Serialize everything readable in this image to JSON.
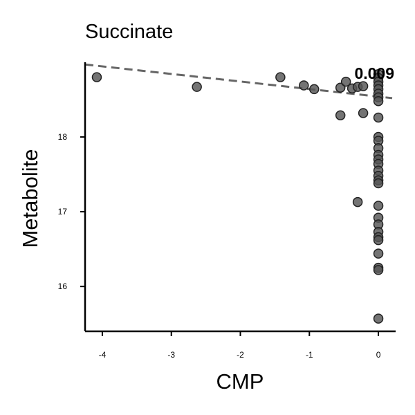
{
  "chart_data": {
    "type": "scatter",
    "title": "Succinate",
    "xlabel": "CMP",
    "ylabel": "Metabolite",
    "xlim": [
      -4.25,
      0.25
    ],
    "ylim": [
      15.4,
      19.0
    ],
    "xticks": [
      -4,
      -3,
      -2,
      -1,
      0
    ],
    "xtick_labels": [
      "-4",
      "-3",
      "-2",
      "-1",
      "0"
    ],
    "yticks": [
      16,
      17,
      18
    ],
    "ytick_labels": [
      "16",
      "17",
      "18"
    ],
    "annotation": "0.009",
    "grid": false,
    "point_color": "#555555",
    "trend_color": "#666666",
    "trendline": {
      "x": [
        -4.25,
        0.2
      ],
      "y": [
        18.97,
        18.52
      ]
    },
    "points": [
      {
        "x": -4.08,
        "y": 18.8
      },
      {
        "x": -2.63,
        "y": 18.67
      },
      {
        "x": -1.42,
        "y": 18.8
      },
      {
        "x": -1.08,
        "y": 18.69
      },
      {
        "x": -0.93,
        "y": 18.64
      },
      {
        "x": -0.55,
        "y": 18.29
      },
      {
        "x": -0.55,
        "y": 18.66
      },
      {
        "x": -0.47,
        "y": 18.74
      },
      {
        "x": -0.38,
        "y": 18.65
      },
      {
        "x": -0.3,
        "y": 18.67
      },
      {
        "x": -0.22,
        "y": 18.68
      },
      {
        "x": -0.22,
        "y": 18.32
      },
      {
        "x": -0.3,
        "y": 17.13
      },
      {
        "x": 0,
        "y": 18.84
      },
      {
        "x": 0,
        "y": 18.79
      },
      {
        "x": 0,
        "y": 18.74
      },
      {
        "x": 0,
        "y": 18.69
      },
      {
        "x": 0,
        "y": 18.64
      },
      {
        "x": 0,
        "y": 18.58
      },
      {
        "x": 0,
        "y": 18.53
      },
      {
        "x": 0,
        "y": 18.48
      },
      {
        "x": 0,
        "y": 18.26
      },
      {
        "x": 0,
        "y": 18.0
      },
      {
        "x": 0,
        "y": 17.95
      },
      {
        "x": 0,
        "y": 17.85
      },
      {
        "x": 0,
        "y": 17.76
      },
      {
        "x": 0,
        "y": 17.7
      },
      {
        "x": 0,
        "y": 17.64
      },
      {
        "x": 0,
        "y": 17.55
      },
      {
        "x": 0,
        "y": 17.48
      },
      {
        "x": 0,
        "y": 17.42
      },
      {
        "x": 0,
        "y": 17.38
      },
      {
        "x": 0,
        "y": 17.08
      },
      {
        "x": 0,
        "y": 16.92
      },
      {
        "x": 0,
        "y": 16.83
      },
      {
        "x": 0,
        "y": 16.73
      },
      {
        "x": 0,
        "y": 16.66
      },
      {
        "x": 0,
        "y": 16.62
      },
      {
        "x": 0,
        "y": 16.44
      },
      {
        "x": 0,
        "y": 16.25
      },
      {
        "x": 0,
        "y": 16.22
      },
      {
        "x": 0,
        "y": 15.57
      }
    ]
  }
}
